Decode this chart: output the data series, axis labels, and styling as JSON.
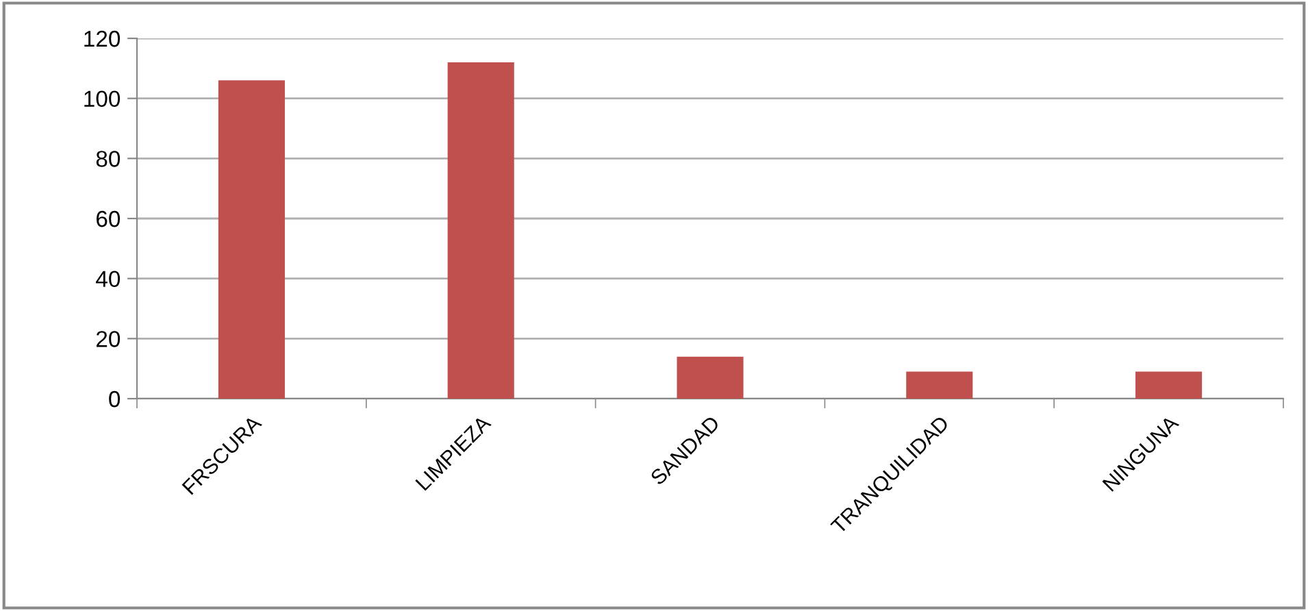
{
  "chart_data": {
    "type": "bar",
    "categories": [
      "FRSCURA",
      "LIMPIEZA",
      "SANDAD",
      "TRANQUILIDAD",
      "NINGUNA"
    ],
    "values": [
      106,
      112,
      14,
      9,
      9
    ],
    "color": "#c0504d",
    "ylim": [
      0,
      120
    ],
    "yticks": [
      0,
      20,
      40,
      60,
      80,
      100,
      120
    ],
    "grid": "y",
    "legend": false
  }
}
